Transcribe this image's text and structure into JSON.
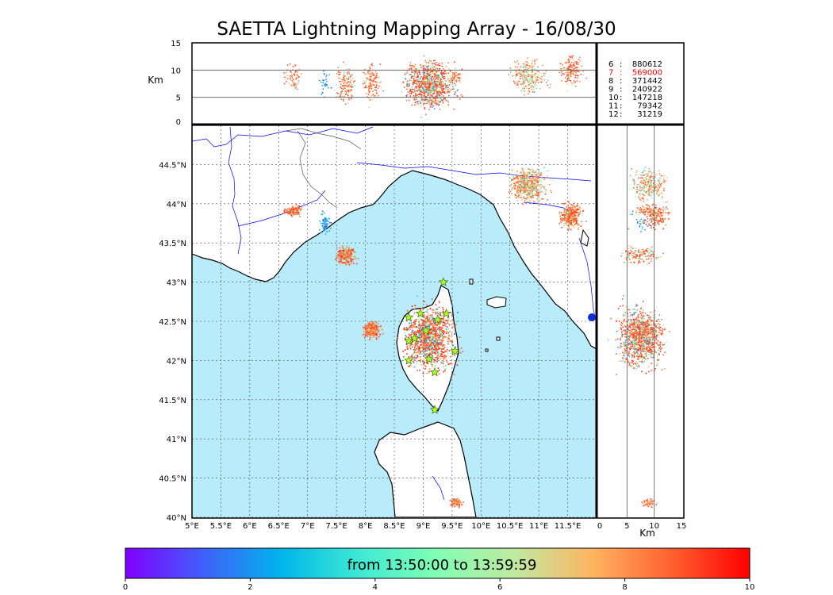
{
  "chart_data": {
    "type": "scatter",
    "title": "SAETTA Lightning Mapping Array - 16/08/30",
    "map": {
      "lon_range": [
        5.0,
        12.0
      ],
      "lat_range": [
        40.0,
        45.0
      ],
      "lon_ticks": [
        5.0,
        5.5,
        6.0,
        6.5,
        7.0,
        7.5,
        8.0,
        8.5,
        9.0,
        9.5,
        10.0,
        10.5,
        11.0,
        11.5
      ],
      "lon_tick_labels": [
        "5°E",
        "5.5°E",
        "6°E",
        "6.5°E",
        "7°E",
        "7.5°E",
        "8°E",
        "8.5°E",
        "9°E",
        "9.5°E",
        "10°E",
        "10.5°E",
        "11°E",
        "11.5°E"
      ],
      "lat_ticks": [
        40.0,
        40.5,
        41.0,
        41.5,
        42.0,
        42.5,
        43.0,
        43.5,
        44.0,
        44.5
      ],
      "lat_tick_labels": [
        "40°N",
        "40.5°N",
        "41°N",
        "41.5°N",
        "42°N",
        "42.5°N",
        "43°N",
        "43.5°N",
        "44°N",
        "44.5°N"
      ],
      "grid": true
    },
    "altitude_panel": {
      "ylabel": "Km",
      "alt_range": [
        0,
        15
      ],
      "ticks": [
        0,
        5,
        10,
        15
      ],
      "tick_labels": [
        "0",
        "5",
        "10",
        "15"
      ]
    },
    "side_panel": {
      "xlabel": "Km",
      "alt_range": [
        0,
        15
      ],
      "ticks": [
        0,
        5,
        10,
        15
      ],
      "tick_labels": [
        "0",
        "5",
        "10",
        "15"
      ]
    },
    "station_counts": [
      {
        "station": "6",
        "count": "880612",
        "color": "#000000"
      },
      {
        "station": "7",
        "count": "569000",
        "color": "#ff0000"
      },
      {
        "station": "8",
        "count": "371442",
        "color": "#000000"
      },
      {
        "station": "9",
        "count": "240922",
        "color": "#000000"
      },
      {
        "station": "10",
        "count": "147218",
        "color": "#000000"
      },
      {
        "station": "11",
        "count": "79342",
        "color": "#000000"
      },
      {
        "station": "12",
        "count": "31219",
        "color": "#000000"
      }
    ],
    "storm_cells": [
      {
        "lon": 9.1,
        "lat": 42.3,
        "alt_mean": 7.5,
        "alt_spread": 3.2,
        "lon_spread": 0.35,
        "lat_spread": 0.33,
        "density": 2600,
        "time_min": 1,
        "time_max": 9.5
      },
      {
        "lon": 8.1,
        "lat": 42.4,
        "alt_mean": 8.0,
        "alt_spread": 2.5,
        "lon_spread": 0.12,
        "lat_spread": 0.09,
        "density": 260,
        "time_min": 6,
        "time_max": 9.5
      },
      {
        "lon": 7.65,
        "lat": 43.35,
        "alt_mean": 7.5,
        "alt_spread": 2.5,
        "lon_spread": 0.14,
        "lat_spread": 0.1,
        "density": 280,
        "time_min": 4,
        "time_max": 9.5
      },
      {
        "lon": 6.75,
        "lat": 43.92,
        "alt_mean": 9.0,
        "alt_spread": 2.0,
        "lon_spread": 0.14,
        "lat_spread": 0.06,
        "density": 140,
        "time_min": 5,
        "time_max": 9.5
      },
      {
        "lon": 7.3,
        "lat": 43.75,
        "alt_mean": 8.0,
        "alt_spread": 2.0,
        "lon_spread": 0.08,
        "lat_spread": 0.1,
        "density": 60,
        "time_min": 0.5,
        "time_max": 3
      },
      {
        "lon": 10.8,
        "lat": 44.25,
        "alt_mean": 9.0,
        "alt_spread": 2.5,
        "lon_spread": 0.25,
        "lat_spread": 0.18,
        "density": 520,
        "time_min": 3,
        "time_max": 9
      },
      {
        "lon": 11.55,
        "lat": 43.85,
        "alt_mean": 10.0,
        "alt_spread": 2.0,
        "lon_spread": 0.16,
        "lat_spread": 0.13,
        "density": 340,
        "time_min": 5,
        "time_max": 9.5
      },
      {
        "lon": 9.55,
        "lat": 40.2,
        "alt_mean": 9.0,
        "alt_spread": 1.0,
        "lon_spread": 0.09,
        "lat_spread": 0.05,
        "density": 110,
        "time_min": 5,
        "time_max": 9.5
      }
    ],
    "stations": [
      {
        "lon": 8.75,
        "lat": 42.55
      },
      {
        "lon": 8.95,
        "lat": 42.6
      },
      {
        "lon": 9.4,
        "lat": 42.6
      },
      {
        "lon": 9.25,
        "lat": 42.52
      },
      {
        "lon": 9.05,
        "lat": 42.38
      },
      {
        "lon": 8.85,
        "lat": 42.28
      },
      {
        "lon": 8.75,
        "lat": 42.25
      },
      {
        "lon": 9.55,
        "lat": 42.12
      },
      {
        "lon": 9.1,
        "lat": 42.02
      },
      {
        "lon": 8.75,
        "lat": 42.0
      },
      {
        "lon": 9.2,
        "lat": 41.85
      },
      {
        "lon": 9.35,
        "lat": 43.0
      },
      {
        "lon": 9.2,
        "lat": 41.37
      }
    ],
    "colorbar": {
      "label": "from 13:50:00 to 13:59:59",
      "range": [
        0,
        10
      ],
      "ticks": [
        0,
        2,
        4,
        6,
        8,
        10
      ],
      "tick_labels": [
        "0",
        "2",
        "4",
        "6",
        "8",
        "10"
      ],
      "colors": [
        "#7f00ff",
        "#4060fa",
        "#00b5eb",
        "#3fe9d3",
        "#80ffb4",
        "#c0e9a0",
        "#ffb360",
        "#ff6030",
        "#ff0000"
      ]
    },
    "map_colors": {
      "sea": "#b8ecfb",
      "coast": "#000000",
      "rivers": "#0000ff",
      "borders": "#555555",
      "grid": "#444444",
      "station_star": "#b0ff20",
      "origin_marker": "#0a2fd8"
    }
  }
}
